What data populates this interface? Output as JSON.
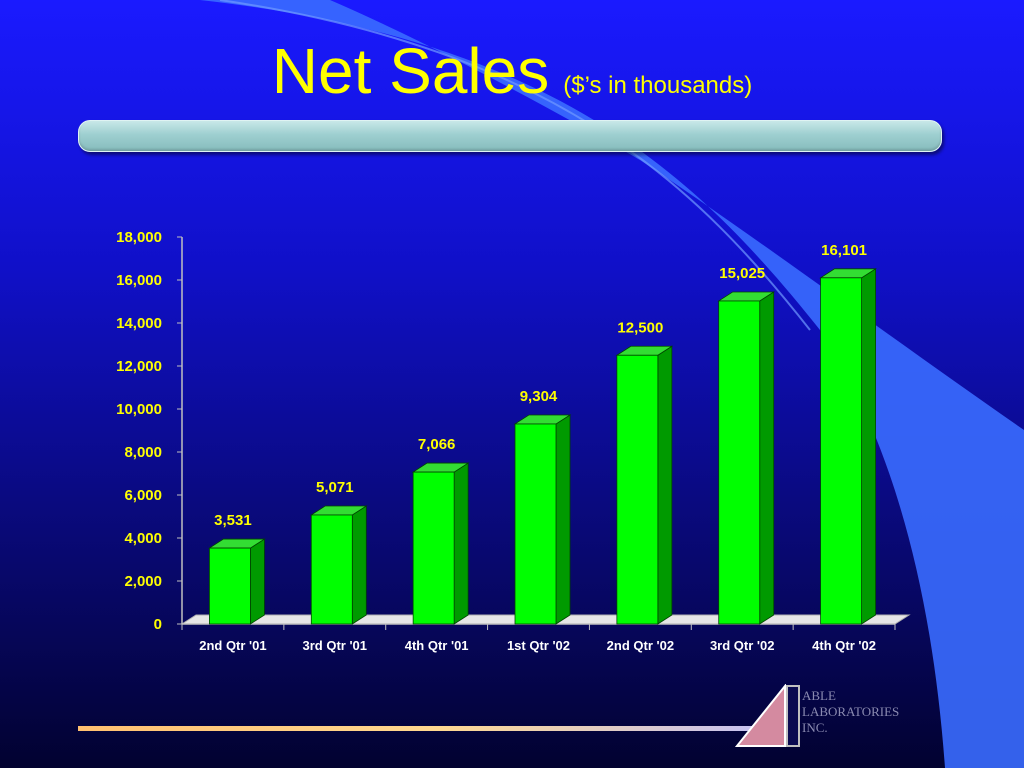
{
  "slide": {
    "title": "Net Sales",
    "subtitle": "($’s in thousands)",
    "logo_text": "ABLE\nLABORATORIES\nINC."
  },
  "colors": {
    "bar_face": "#00ff00",
    "bar_side": "#009a00",
    "bar_top": "#33dd33",
    "tick_label": "#ffff00",
    "category_label": "#ffffff"
  },
  "chart_data": {
    "type": "bar",
    "categories": [
      "2nd Qtr '01",
      "3rd Qtr '01",
      "4th Qtr '01",
      "1st Qtr '02",
      "2nd Qtr '02",
      "3rd Qtr '02",
      "4th Qtr '02"
    ],
    "values": [
      3531,
      5071,
      7066,
      9304,
      12500,
      15025,
      16101
    ],
    "data_labels": [
      "3,531",
      "5,071",
      "7,066",
      "9,304",
      "12,500",
      "15,025",
      "16,101"
    ],
    "y_ticks": [
      0,
      2000,
      4000,
      6000,
      8000,
      10000,
      12000,
      14000,
      16000,
      18000
    ],
    "y_tick_labels": [
      "0",
      "2,000",
      "4,000",
      "6,000",
      "8,000",
      "10,000",
      "12,000",
      "14,000",
      "16,000",
      "18,000"
    ],
    "ylim": [
      0,
      18000
    ],
    "grid": false,
    "legend": "none"
  }
}
